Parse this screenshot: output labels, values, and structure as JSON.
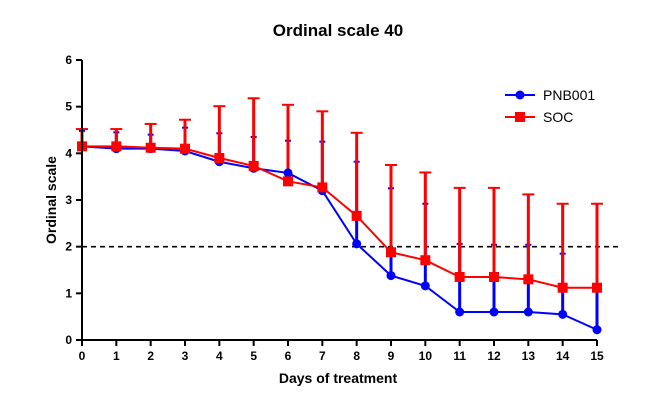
{
  "chart_data": {
    "type": "line",
    "title": "Ordinal scale 40",
    "xlabel": "Days of treatment",
    "ylabel": "Ordinal scale",
    "xlim": [
      0,
      15
    ],
    "ylim": [
      0,
      6
    ],
    "x_ticks": [
      "0",
      "1",
      "2",
      "3",
      "4",
      "5",
      "6",
      "7",
      "8",
      "9",
      "10",
      "11",
      "12",
      "13",
      "14",
      "15"
    ],
    "y_ticks": [
      "0",
      "1",
      "2",
      "3",
      "4",
      "5",
      "6"
    ],
    "x": [
      0,
      1,
      2,
      3,
      4,
      5,
      6,
      7,
      8,
      9,
      10,
      11,
      12,
      13,
      14,
      15
    ],
    "series": [
      {
        "name": "PNB001",
        "color": "#0000ff",
        "marker": "circle",
        "values": [
          4.15,
          4.1,
          4.1,
          4.05,
          3.82,
          3.68,
          3.58,
          3.2,
          2.06,
          1.38,
          1.16,
          0.6,
          0.6,
          0.6,
          0.55,
          0.22
        ],
        "error_upper": [
          4.48,
          4.45,
          4.4,
          4.55,
          4.43,
          4.35,
          4.27,
          4.25,
          3.82,
          3.25,
          2.92,
          2.06,
          2.04,
          2.04,
          1.85,
          1.08
        ]
      },
      {
        "name": "SOC",
        "color": "#ff0000",
        "marker": "square",
        "values": [
          4.15,
          4.15,
          4.12,
          4.1,
          3.9,
          3.73,
          3.4,
          3.27,
          2.66,
          1.88,
          1.71,
          1.35,
          1.35,
          1.3,
          1.12,
          1.12
        ],
        "error_upper": [
          4.52,
          4.52,
          4.63,
          4.72,
          5.01,
          5.18,
          5.04,
          4.9,
          4.44,
          3.75,
          3.59,
          3.26,
          3.26,
          3.12,
          2.92,
          2.92
        ]
      }
    ],
    "reference_line": {
      "y": 2,
      "style": "dashed",
      "color": "#000000"
    },
    "legend_position": "top-right",
    "grid": false
  }
}
